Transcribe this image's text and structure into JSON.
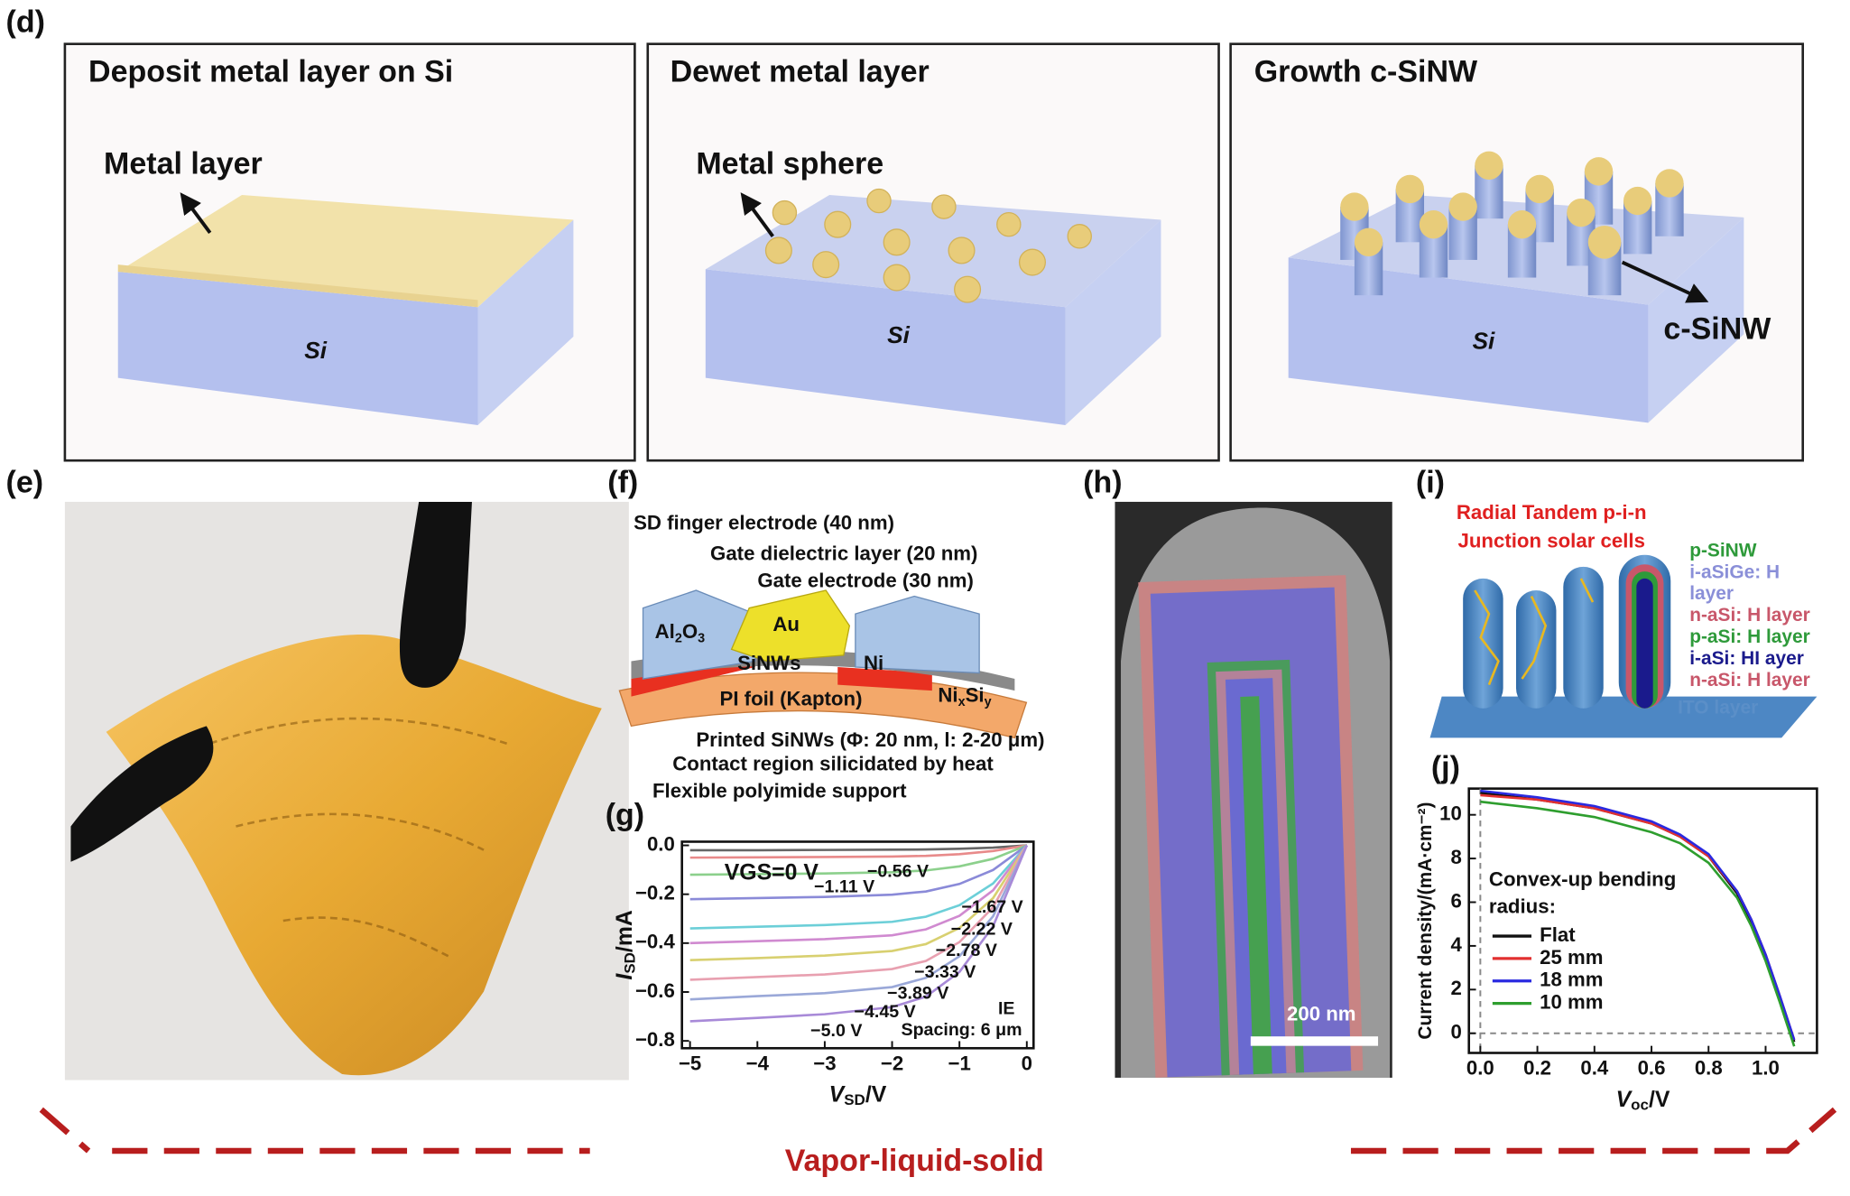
{
  "panel_labels": [
    "(d)",
    "(e)",
    "(f)",
    "(g)",
    "(h)",
    "(i)",
    "(j)"
  ],
  "panel_d": {
    "steps": [
      {
        "title": "Deposit metal layer on Si",
        "callout": "Metal layer",
        "substrate": "Si"
      },
      {
        "title": "Dewet metal layer",
        "callout": "Metal sphere",
        "substrate": "Si"
      },
      {
        "title": "Growth c-SiNW",
        "callout": "c-SiNW",
        "substrate": "Si"
      }
    ]
  },
  "panel_f": {
    "sd_electrode": "SD finger electrode (40 nm)",
    "gate_dielectric": "Gate dielectric layer (20 nm)",
    "gate_electrode": "Gate electrode (30 nm)",
    "au": "Au",
    "al2o3": [
      "Al",
      "2",
      "O",
      "3"
    ],
    "sinws": "SiNWs",
    "ni": "Ni",
    "nisi": [
      "Ni",
      "x",
      "Si",
      "y"
    ],
    "pi_foil": "PI foil (Kapton)",
    "printed": "Printed SiNWs (Φ: 20 nm, l: 2-20 μm)",
    "contact": "Contact region silicidated by heat",
    "support": "Flexible polyimide support"
  },
  "panel_h": {
    "scale_bar": "200 nm"
  },
  "panel_i": {
    "title_lines": [
      "Radial Tandem p-i-n",
      "Junction solar cells"
    ],
    "layers": [
      {
        "text": "p-SiNW",
        "color": "#2e9a3a"
      },
      {
        "text": "i-aSiGe: H",
        "color": "#8a8fd8"
      },
      {
        "text": "layer",
        "color": "#8a8fd8"
      },
      {
        "text": "n-aSi: H layer",
        "color": "#c8576a"
      },
      {
        "text": "p-aSi: H layer",
        "color": "#2e9a3a"
      },
      {
        "text": "i-aSi: HI ayer",
        "color": "#1a1a8c"
      },
      {
        "text": "n-aSi: H layer",
        "color": "#c8576a"
      },
      {
        "text": "ITO layer",
        "color": "#5b8fc8"
      }
    ]
  },
  "footer": "Vapor-liquid-solid",
  "chart_data": [
    {
      "type": "line",
      "x_label": {
        "main": "V",
        "sub": "SD",
        "unit": "/V"
      },
      "y_label": {
        "main": "I",
        "sub": "SD",
        "unit": "/mA"
      },
      "x": [
        -5,
        -4,
        -3,
        -2,
        -1.5,
        -1,
        -0.5,
        0
      ],
      "xlim": [
        -5.12,
        0.1
      ],
      "ylim": [
        -0.83,
        0.015
      ],
      "xticks": [
        {
          "value": -5,
          "label": "−5"
        },
        {
          "value": -4,
          "label": "−4"
        },
        {
          "value": -3,
          "label": "−3"
        },
        {
          "value": -2,
          "label": "−2"
        },
        {
          "value": -1,
          "label": "−1"
        },
        0
      ],
      "yticks": [
        {
          "value": 0,
          "label": "0.0"
        },
        {
          "value": -0.2,
          "label": "−0.2"
        },
        {
          "value": -0.4,
          "label": "−0.4"
        },
        {
          "value": -0.6,
          "label": "−0.6"
        },
        {
          "value": -0.8,
          "label": "−0.8"
        }
      ],
      "series": [
        {
          "name": "VGS=0 V",
          "color": "#666666",
          "values": [
            -0.02,
            -0.02,
            -0.019,
            -0.018,
            -0.017,
            -0.014,
            -0.009,
            0
          ]
        },
        {
          "name": "−0.56 V",
          "color": "#e88a8a",
          "values": [
            -0.05,
            -0.049,
            -0.048,
            -0.046,
            -0.043,
            -0.036,
            -0.023,
            0
          ]
        },
        {
          "name": "−1.11 V",
          "color": "#8cd08c",
          "values": [
            -0.12,
            -0.118,
            -0.115,
            -0.11,
            -0.103,
            -0.086,
            -0.055,
            0
          ]
        },
        {
          "name": "−1.67 V",
          "color": "#8a8ad8",
          "values": [
            -0.22,
            -0.216,
            -0.211,
            -0.202,
            -0.189,
            -0.158,
            -0.101,
            0
          ]
        },
        {
          "name": "−2.22 V",
          "color": "#6ccfd8",
          "values": [
            -0.34,
            -0.333,
            -0.326,
            -0.313,
            -0.292,
            -0.245,
            -0.156,
            0
          ]
        },
        {
          "name": "−2.78 V",
          "color": "#d08ad0",
          "values": [
            -0.4,
            -0.392,
            -0.384,
            -0.368,
            -0.344,
            -0.288,
            -0.184,
            0
          ]
        },
        {
          "name": "−3.33 V",
          "color": "#d8d070",
          "values": [
            -0.47,
            -0.461,
            -0.451,
            -0.432,
            -0.404,
            -0.338,
            -0.216,
            0
          ]
        },
        {
          "name": "−3.89 V",
          "color": "#e8a0b0",
          "values": [
            -0.55,
            -0.539,
            -0.528,
            -0.506,
            -0.473,
            -0.396,
            -0.253,
            0
          ]
        },
        {
          "name": "−4.45 V",
          "color": "#9aa8d8",
          "values": [
            -0.63,
            -0.617,
            -0.605,
            -0.58,
            -0.542,
            -0.454,
            -0.29,
            0
          ]
        },
        {
          "name": "−5.0 V",
          "color": "#a88ad8",
          "values": [
            -0.72,
            -0.706,
            -0.691,
            -0.662,
            -0.619,
            -0.518,
            -0.331,
            0
          ]
        }
      ],
      "annotations": [
        "IE",
        "Spacing: 6 μm"
      ]
    },
    {
      "type": "line",
      "x_label": {
        "main": "V",
        "sub": "oc",
        "unit": "/V"
      },
      "y_label": "Current density/(mA·cm⁻²)",
      "x": [
        0,
        0.2,
        0.4,
        0.6,
        0.7,
        0.8,
        0.9,
        0.95,
        1.0,
        1.05,
        1.1
      ],
      "xlim": [
        -0.04,
        1.18
      ],
      "ylim": [
        -0.9,
        11.2
      ],
      "xticks": [
        {
          "value": 0,
          "label": "0.0"
        },
        0.2,
        0.4,
        0.6,
        0.8,
        {
          "value": 1,
          "label": "1.0"
        }
      ],
      "yticks": [
        0,
        2,
        4,
        6,
        8,
        10
      ],
      "zero_guides": true,
      "legend_title": [
        "Convex-up bending",
        "radius:"
      ],
      "series": [
        {
          "name": "Flat",
          "color": "#111111",
          "values": [
            11.0,
            10.7,
            10.3,
            9.6,
            9.0,
            8.1,
            6.4,
            5.1,
            3.5,
            1.6,
            -0.4
          ]
        },
        {
          "name": "25 mm",
          "color": "#e23030",
          "values": [
            10.9,
            10.7,
            10.3,
            9.6,
            9.0,
            8.1,
            6.5,
            5.2,
            3.6,
            1.7,
            -0.3
          ]
        },
        {
          "name": "18 mm",
          "color": "#2a2ae0",
          "values": [
            11.1,
            10.8,
            10.4,
            9.7,
            9.1,
            8.2,
            6.5,
            5.2,
            3.6,
            1.7,
            -0.3
          ]
        },
        {
          "name": "10 mm",
          "color": "#2e9e2e",
          "values": [
            10.6,
            10.3,
            9.9,
            9.2,
            8.7,
            7.8,
            6.2,
            4.9,
            3.3,
            1.4,
            -0.6
          ]
        }
      ]
    }
  ]
}
